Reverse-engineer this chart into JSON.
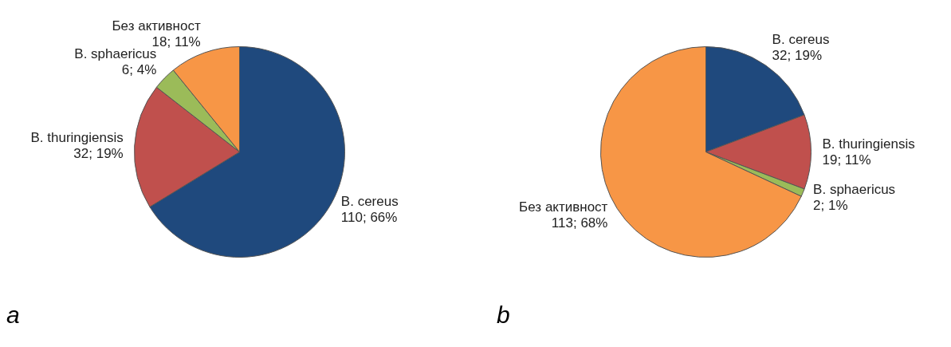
{
  "chart_data": [
    {
      "type": "pie",
      "title": "a",
      "categories": [
        "B. cereus",
        "B. thuringiensis",
        "B. sphaericus",
        "Без активност"
      ],
      "values": [
        110,
        32,
        6,
        18
      ],
      "colors": [
        "#1f497d",
        "#c0504d",
        "#9bbb59",
        "#f79646"
      ],
      "value_labels": [
        "110; 66%",
        "32; 19%",
        "6; 4%",
        "18; 11%"
      ],
      "legend": false
    },
    {
      "type": "pie",
      "title": "b",
      "categories": [
        "B. cereus",
        "B. thuringiensis",
        "B. sphaericus",
        "Без активност"
      ],
      "values": [
        32,
        19,
        2,
        113
      ],
      "colors": [
        "#1f497d",
        "#c0504d",
        "#9bbb59",
        "#f79646"
      ],
      "value_labels": [
        "32; 19%",
        "19; 11%",
        "2; 1%",
        "113; 68%"
      ],
      "legend": false
    }
  ]
}
